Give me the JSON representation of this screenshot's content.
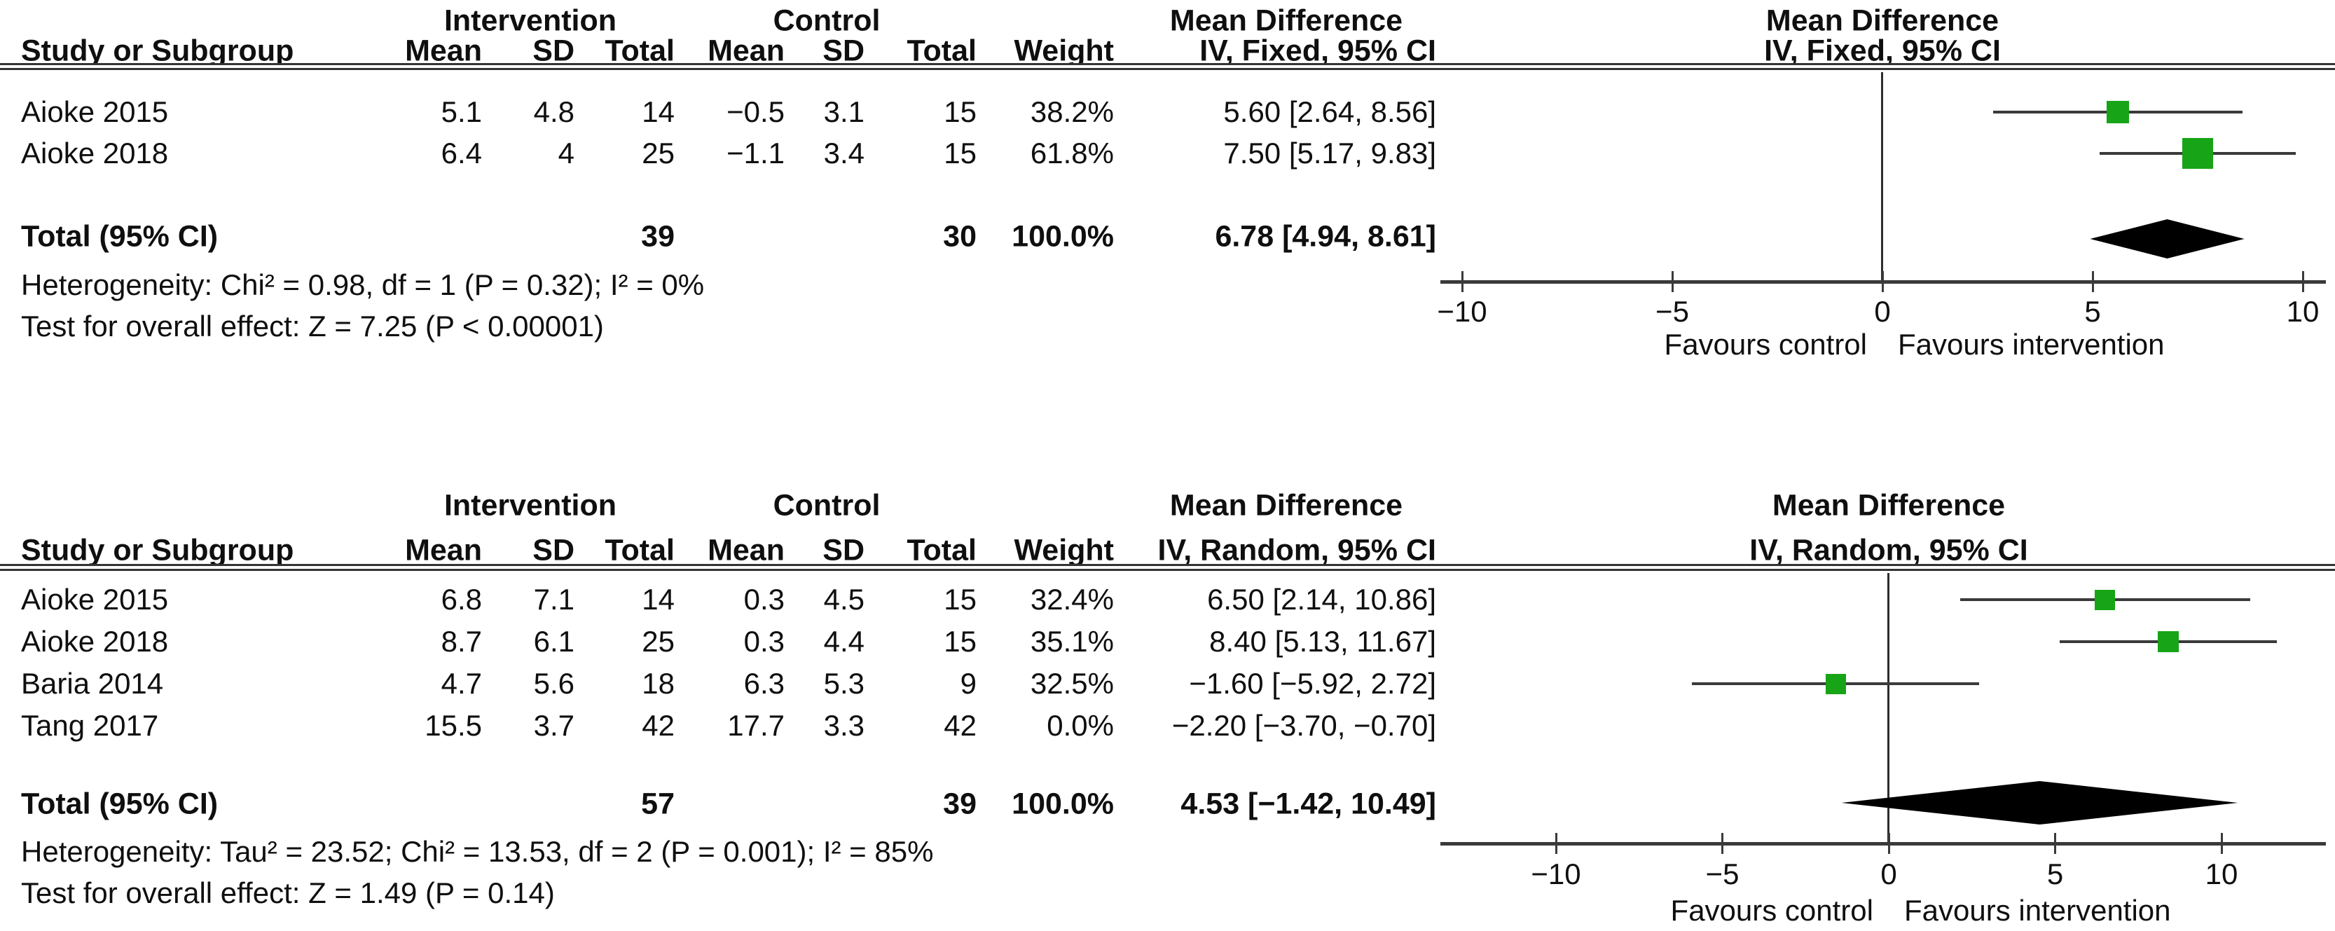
{
  "chart_data": {
    "type": "forest",
    "colors": {
      "marker_green": "#17a417",
      "line_dark": "#3a3a3a",
      "diamond_black": "#000000",
      "text": "#0f0f0f",
      "background": "#ffffff"
    },
    "panels": [
      {
        "model": "fixed",
        "group_headers": {
          "intervention": "Intervention",
          "control": "Control",
          "effect": "Mean Difference"
        },
        "column_headers": {
          "study": "Study or Subgroup",
          "mean": "Mean",
          "sd": "SD",
          "total": "Total",
          "weight": "Weight",
          "effect_ci": "IV, Fixed, 95% CI"
        },
        "plot_header": {
          "line1": "Mean Difference",
          "line2": "IV, Fixed, 95% CI"
        },
        "studies": [
          {
            "study": "Aioke 2015",
            "mean1": "5.1",
            "sd1": "4.8",
            "total1": "14",
            "mean2": "−0.5",
            "sd2": "3.1",
            "total2": "15",
            "weight": "38.2%",
            "estimate_text": "5.60 [2.64, 8.56]",
            "estimate": 5.6,
            "ci_low": 2.64,
            "ci_high": 8.56,
            "weight_value": 38.2
          },
          {
            "study": "Aioke 2018",
            "mean1": "6.4",
            "sd1": "4",
            "total1": "25",
            "mean2": "−1.1",
            "sd2": "3.4",
            "total2": "15",
            "weight": "61.8%",
            "estimate_text": "7.50 [5.17, 9.83]",
            "estimate": 7.5,
            "ci_low": 5.17,
            "ci_high": 9.83,
            "weight_value": 61.8
          }
        ],
        "total": {
          "label": "Total (95% CI)",
          "total1": "39",
          "total2": "30",
          "weight": "100.0%",
          "estimate_text": "6.78 [4.94, 8.61]",
          "estimate": 6.78,
          "ci_low": 4.94,
          "ci_high": 8.61
        },
        "heterogeneity": "Heterogeneity: Chi² = 0.98, df = 1 (P = 0.32); I² = 0%",
        "overall_effect": "Test for overall effect: Z = 7.25 (P < 0.00001)",
        "axis": {
          "ticks": [
            "−10",
            "−5",
            "0",
            "5",
            "10"
          ],
          "tick_values": [
            -10,
            -5,
            0,
            5,
            10
          ],
          "min": -10,
          "max": 10
        },
        "footer": {
          "left": "Favours control",
          "right": "Favours intervention"
        }
      },
      {
        "model": "random",
        "group_headers": {
          "intervention": "Intervention",
          "control": "Control",
          "effect": "Mean Difference"
        },
        "column_headers": {
          "study": "Study or Subgroup",
          "mean": "Mean",
          "sd": "SD",
          "total": "Total",
          "weight": "Weight",
          "effect_ci": "IV, Random, 95% CI"
        },
        "plot_header": {
          "line1": "Mean Difference",
          "line2": "IV, Random, 95% CI"
        },
        "studies": [
          {
            "study": "Aioke 2015",
            "mean1": "6.8",
            "sd1": "7.1",
            "total1": "14",
            "mean2": "0.3",
            "sd2": "4.5",
            "total2": "15",
            "weight": "32.4%",
            "estimate_text": "6.50 [2.14, 10.86]",
            "estimate": 6.5,
            "ci_low": 2.14,
            "ci_high": 10.86,
            "weight_value": 32.4
          },
          {
            "study": "Aioke 2018",
            "mean1": "8.7",
            "sd1": "6.1",
            "total1": "25",
            "mean2": "0.3",
            "sd2": "4.4",
            "total2": "15",
            "weight": "35.1%",
            "estimate_text": "8.40 [5.13, 11.67]",
            "estimate": 8.4,
            "ci_low": 5.13,
            "ci_high": 11.67,
            "weight_value": 35.1
          },
          {
            "study": "Baria 2014",
            "mean1": "4.7",
            "sd1": "5.6",
            "total1": "18",
            "mean2": "6.3",
            "sd2": "5.3",
            "total2": "9",
            "weight": "32.5%",
            "estimate_text": "−1.60 [−5.92, 2.72]",
            "estimate": -1.6,
            "ci_low": -5.92,
            "ci_high": 2.72,
            "weight_value": 32.5
          },
          {
            "study": "Tang 2017",
            "mean1": "15.5",
            "sd1": "3.7",
            "total1": "42",
            "mean2": "17.7",
            "sd2": "3.3",
            "total2": "42",
            "weight": "0.0%",
            "estimate_text": "−2.20 [−3.70, −0.70]",
            "estimate": -2.2,
            "ci_low": -3.7,
            "ci_high": -0.7,
            "weight_value": 0.0
          }
        ],
        "total": {
          "label": "Total (95% CI)",
          "total1": "57",
          "total2": "39",
          "weight": "100.0%",
          "estimate_text": "4.53 [−1.42, 10.49]",
          "estimate": 4.53,
          "ci_low": -1.42,
          "ci_high": 10.49
        },
        "heterogeneity": "Heterogeneity: Tau² = 23.52; Chi² = 13.53, df = 2 (P = 0.001); I² = 85%",
        "overall_effect": "Test for overall effect: Z = 1.49 (P = 0.14)",
        "axis": {
          "ticks": [
            "−10",
            "−5",
            "0",
            "5",
            "10"
          ],
          "tick_values": [
            -10,
            -5,
            0,
            5,
            10
          ],
          "min": -10,
          "max": 10
        },
        "footer": {
          "left": "Favours control",
          "right": "Favours intervention"
        }
      }
    ]
  }
}
